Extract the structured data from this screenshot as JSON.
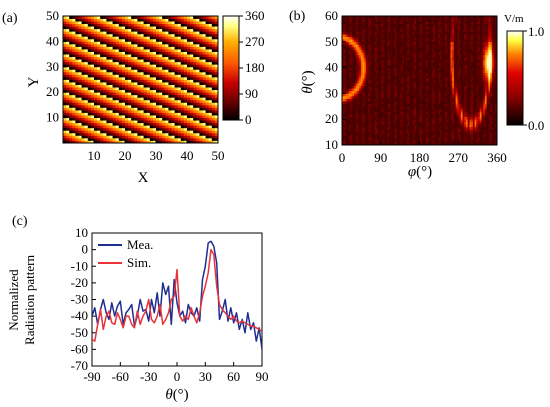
{
  "panel_labels": {
    "a": "(a)",
    "b": "(b)",
    "c": "(c)"
  },
  "chart_data": [
    {
      "panel": "(a)",
      "type": "heatmap",
      "description_of_pattern": "phase gradient stripes",
      "xlabel": "X",
      "ylabel": "Y",
      "xlim": [
        0,
        50
      ],
      "ylim": [
        0,
        50
      ],
      "x_ticks": [
        "10",
        "20",
        "30",
        "40",
        "50"
      ],
      "y_ticks": [
        "10",
        "20",
        "30",
        "40",
        "50"
      ],
      "colorbar_ticks": [
        "360",
        "270",
        "180",
        "90",
        "0"
      ],
      "colorbar_range": [
        0,
        360
      ],
      "colormap": [
        "#000000",
        "#6b0000",
        "#c80000",
        "#ff5a00",
        "#ffb000",
        "#ffff80",
        "#ffffff"
      ]
    },
    {
      "panel": "(b)",
      "type": "heatmap",
      "xlabel_symbol": "φ",
      "xlabel_unit": "(°)",
      "ylabel_symbol": "θ",
      "ylabel_unit": "(°)",
      "xlim": [
        0,
        360
      ],
      "ylim": [
        10,
        60
      ],
      "x_ticks": [
        "0",
        "90",
        "180",
        "270",
        "360"
      ],
      "y_ticks": [
        "60",
        "50",
        "40",
        "30",
        "20",
        "10"
      ],
      "colorbar_unit": "V/m",
      "colorbar_ticks": [
        "1.0",
        "0.0"
      ],
      "colorbar_range": [
        0.0,
        1.0
      ],
      "hotspot": {
        "phi": 340,
        "theta": 42
      }
    },
    {
      "panel": "(c)",
      "type": "line",
      "ylabel_line1": "Normalized",
      "ylabel_line2": "Radiation pattern",
      "xlabel_symbol": "θ",
      "xlabel_unit": "(°)",
      "xlim": [
        -90,
        90
      ],
      "ylim": [
        -70,
        10
      ],
      "x_ticks": [
        "-90",
        "-60",
        "-30",
        "0",
        "30",
        "60",
        "90"
      ],
      "y_ticks": [
        "10",
        "0",
        "-10",
        "-20",
        "-30",
        "-40",
        "-50",
        "-60",
        "-70"
      ],
      "legend_position": "top-left",
      "series": [
        {
          "name": "Mea.",
          "color": "#1f2f8f",
          "x": [
            -90,
            -87,
            -84,
            -81,
            -78,
            -75,
            -72,
            -69,
            -66,
            -63,
            -60,
            -57,
            -54,
            -51,
            -48,
            -45,
            -42,
            -39,
            -36,
            -33,
            -30,
            -27,
            -24,
            -21,
            -18,
            -15,
            -12,
            -9,
            -6,
            -3,
            0,
            3,
            6,
            9,
            12,
            15,
            18,
            21,
            24,
            27,
            30,
            33,
            36,
            39,
            42,
            45,
            48,
            51,
            54,
            57,
            60,
            63,
            66,
            69,
            72,
            75,
            78,
            81,
            84,
            87,
            90
          ],
          "values": [
            -40,
            -35,
            -45,
            -36,
            -30,
            -38,
            -42,
            -32,
            -40,
            -34,
            -31,
            -45,
            -38,
            -36,
            -33,
            -46,
            -40,
            -30,
            -37,
            -36,
            -43,
            -30,
            -38,
            -26,
            -40,
            -20,
            -27,
            -22,
            -45,
            -18,
            -32,
            -40,
            -37,
            -44,
            -33,
            -38,
            -40,
            -35,
            -43,
            -18,
            -10,
            4,
            5,
            2,
            -8,
            -42,
            -37,
            -30,
            -43,
            -35,
            -44,
            -38,
            -48,
            -42,
            -50,
            -38,
            -48,
            -44,
            -55,
            -47,
            -60
          ]
        },
        {
          "name": "Sim.",
          "color": "#e8333a",
          "x": [
            -90,
            -87,
            -84,
            -81,
            -78,
            -75,
            -72,
            -69,
            -66,
            -63,
            -60,
            -57,
            -54,
            -51,
            -48,
            -45,
            -42,
            -39,
            -36,
            -33,
            -30,
            -27,
            -24,
            -21,
            -18,
            -15,
            -12,
            -9,
            -6,
            -3,
            0,
            3,
            6,
            9,
            12,
            15,
            18,
            21,
            24,
            27,
            30,
            33,
            36,
            39,
            42,
            45,
            48,
            51,
            54,
            57,
            60,
            63,
            66,
            69,
            72,
            75,
            78,
            81,
            84,
            87,
            90
          ],
          "values": [
            -54,
            -55,
            -45,
            -36,
            -48,
            -40,
            -37,
            -44,
            -45,
            -38,
            -42,
            -47,
            -40,
            -40,
            -45,
            -47,
            -37,
            -45,
            -40,
            -37,
            -30,
            -42,
            -44,
            -40,
            -33,
            -45,
            -42,
            -38,
            -30,
            -28,
            -12,
            -40,
            -43,
            -40,
            -42,
            -35,
            -40,
            -44,
            -38,
            -28,
            -22,
            -14,
            0,
            -3,
            -22,
            -33,
            -36,
            -38,
            -40,
            -42,
            -40,
            -43,
            -44,
            -43,
            -44,
            -45,
            -46,
            -46,
            -47,
            -48,
            -49
          ]
        }
      ]
    }
  ]
}
